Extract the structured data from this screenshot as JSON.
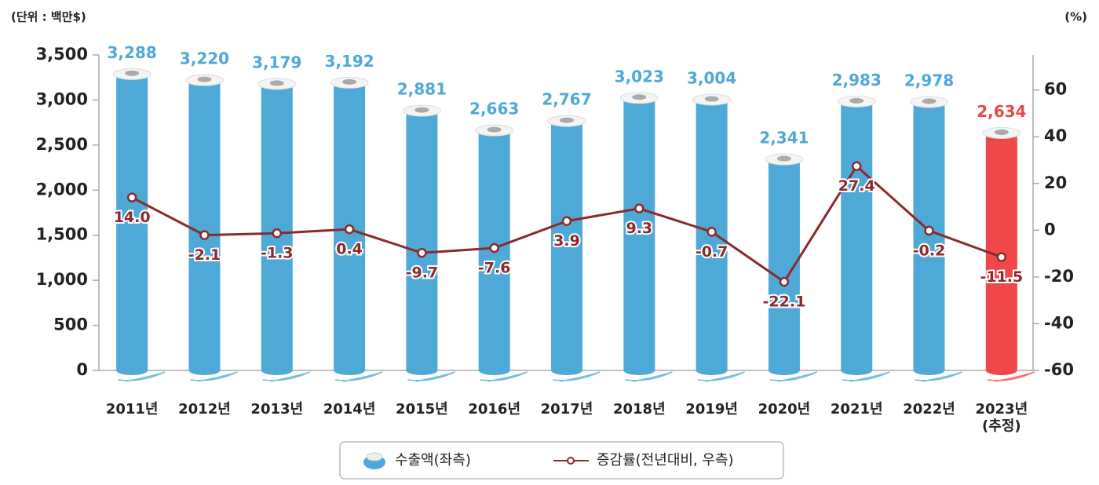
{
  "chart_data": {
    "type": "bar",
    "unit_left": "(단위 : 백만$)",
    "unit_right": "(%)",
    "categories": [
      "2011년",
      "2012년",
      "2013년",
      "2014년",
      "2015년",
      "2016년",
      "2017년",
      "2018년",
      "2019년",
      "2020년",
      "2021년",
      "2022년",
      "2023년\n(추정)"
    ],
    "series": [
      {
        "name": "수출액(좌측)",
        "type": "bar",
        "colors": [
          "#4fa9d6",
          "#4fa9d6",
          "#4fa9d6",
          "#4fa9d6",
          "#4fa9d6",
          "#4fa9d6",
          "#4fa9d6",
          "#4fa9d6",
          "#4fa9d6",
          "#4fa9d6",
          "#4fa9d6",
          "#4fa9d6",
          "#f04848"
        ],
        "label_colors": [
          "#4fa9d6",
          "#4fa9d6",
          "#4fa9d6",
          "#4fa9d6",
          "#4fa9d6",
          "#4fa9d6",
          "#4fa9d6",
          "#4fa9d6",
          "#4fa9d6",
          "#4fa9d6",
          "#4fa9d6",
          "#4fa9d6",
          "#e84848"
        ],
        "values": [
          3288,
          3220,
          3179,
          3192,
          2881,
          2663,
          2767,
          3023,
          3004,
          2341,
          2983,
          2978,
          2634
        ],
        "value_labels": [
          "3,288",
          "3,220",
          "3,179",
          "3,192",
          "2,881",
          "2,663",
          "2,767",
          "3,023",
          "3,004",
          "2,341",
          "2,983",
          "2,978",
          "2,634"
        ]
      },
      {
        "name": "증감률(전년대비, 우측)",
        "type": "line",
        "axis": "y2",
        "color": "#8b2a2a",
        "values": [
          14.0,
          -2.1,
          -1.3,
          0.4,
          -9.7,
          -7.6,
          3.9,
          9.3,
          -0.7,
          -22.1,
          27.4,
          -0.2,
          -11.5
        ],
        "value_labels": [
          "14.0",
          "-2.1",
          "-1.3",
          "0.4",
          "-9.7",
          "-7.6",
          "3.9",
          "9.3",
          "-0.7",
          "-22.1",
          "27.4",
          "-0.2",
          "-11.5"
        ]
      }
    ],
    "ylim": [
      0,
      3500
    ],
    "yticks": [
      0,
      500,
      {
        "value": 1000,
        "label": "1,000"
      },
      {
        "value": 1500,
        "label": "1,500"
      },
      {
        "value": 2000,
        "label": "2,000"
      },
      {
        "value": 2500,
        "label": "2,500"
      },
      {
        "value": 3000,
        "label": "3,000"
      },
      {
        "value": 3500,
        "label": "3,500"
      }
    ],
    "y2lim": [
      -60,
      75
    ],
    "y2ticks": [
      -60,
      -40,
      -20,
      0,
      20,
      40,
      60
    ]
  }
}
